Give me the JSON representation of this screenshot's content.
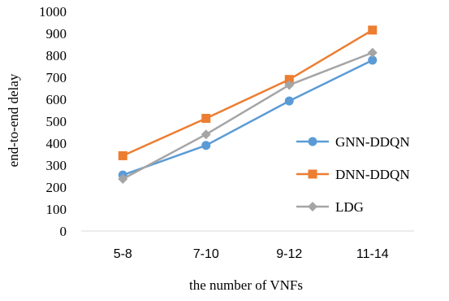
{
  "chart_data": {
    "type": "line",
    "xlabel": "the number of VNFs",
    "ylabel": "end-to-end delay",
    "categories": [
      "5-8",
      "7-10",
      "9-12",
      "11-14"
    ],
    "ylim": [
      0,
      1000
    ],
    "yticks": [
      0,
      100,
      200,
      300,
      400,
      500,
      600,
      700,
      800,
      900,
      1000
    ],
    "grid": false,
    "legend_position": "right",
    "series": [
      {
        "name": "GNN-DDQN",
        "values": [
          255,
          390,
          592,
          778
        ],
        "color": "#5B9BD5",
        "marker": "circle"
      },
      {
        "name": "DNN-DDQN",
        "values": [
          343,
          513,
          690,
          915
        ],
        "color": "#ED7D31",
        "marker": "square"
      },
      {
        "name": "LDG",
        "values": [
          237,
          440,
          665,
          812
        ],
        "color": "#A5A5A5",
        "marker": "diamond"
      }
    ]
  }
}
